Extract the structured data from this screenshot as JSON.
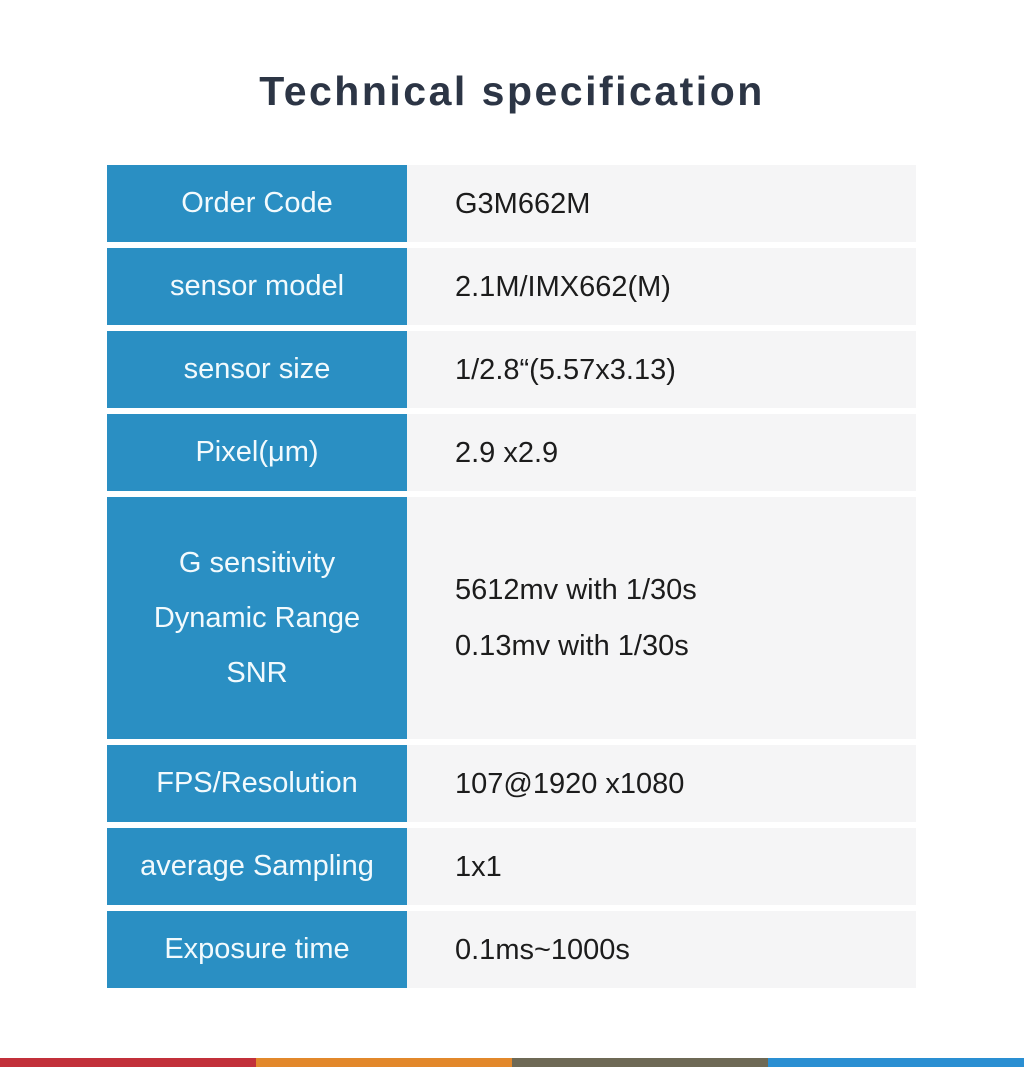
{
  "title": "Technical specification",
  "table": {
    "rows": [
      {
        "label": "Order Code",
        "value": "G3M662M"
      },
      {
        "label": "sensor model",
        "value": "2.1M/IMX662(M)"
      },
      {
        "label": "sensor size",
        "value": "1/2.8“(5.57x3.13)"
      },
      {
        "label": "Pixel(μm)",
        "value": "2.9 x2.9"
      },
      {
        "label_lines": [
          "G sensitivity",
          "Dynamic Range",
          "SNR"
        ],
        "value_lines": [
          "5612mv with 1/30s",
          "0.13mv with 1/30s"
        ]
      },
      {
        "label": "FPS/Resolution",
        "value": "107@1920 x1080"
      },
      {
        "label": "average Sampling",
        "value": "1x1"
      },
      {
        "label": "Exposure time",
        "value": "0.1ms~1000s"
      }
    ]
  },
  "colors": {
    "title_text": "#2c3545",
    "label_cell_bg": "#2a8fc3",
    "label_cell_text": "#f2fafd",
    "value_cell_bg": "#f5f5f6",
    "value_cell_text": "#1c1c1c"
  },
  "footer_stripe": {
    "segments": [
      "#c2303a",
      "#e2882b",
      "#6e6955",
      "#2a8fd2"
    ]
  }
}
